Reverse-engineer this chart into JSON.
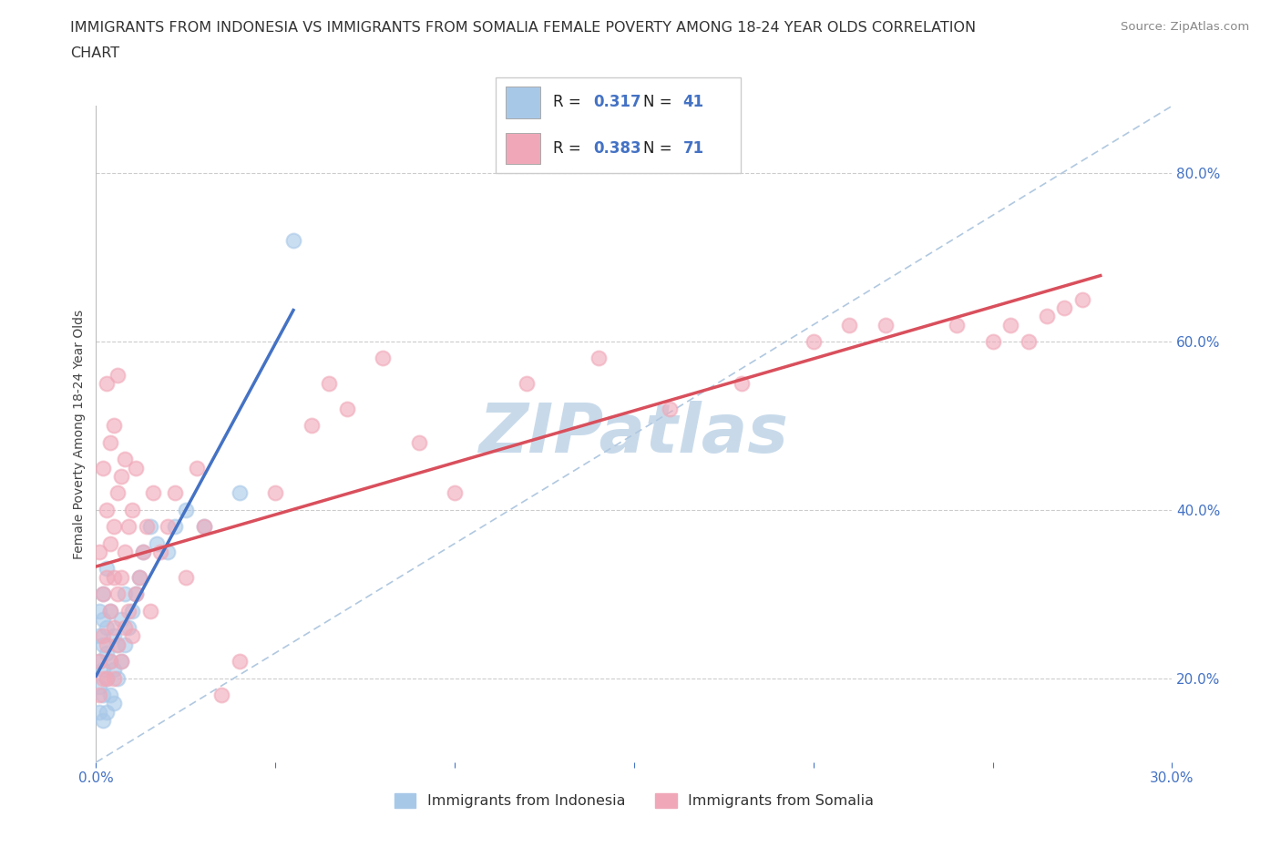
{
  "title_line1": "IMMIGRANTS FROM INDONESIA VS IMMIGRANTS FROM SOMALIA FEMALE POVERTY AMONG 18-24 YEAR OLDS CORRELATION",
  "title_line2": "CHART",
  "source_text": "Source: ZipAtlas.com",
  "ylabel": "Female Poverty Among 18-24 Year Olds",
  "xlim": [
    0.0,
    0.3
  ],
  "ylim": [
    0.1,
    0.88
  ],
  "xticks": [
    0.0,
    0.05,
    0.1,
    0.15,
    0.2,
    0.25,
    0.3
  ],
  "xticklabels": [
    "0.0%",
    "",
    "",
    "",
    "",
    "",
    "30.0%"
  ],
  "yticks": [
    0.2,
    0.4,
    0.6,
    0.8
  ],
  "yticklabels": [
    "20.0%",
    "40.0%",
    "60.0%",
    "80.0%"
  ],
  "grid_color": "#cccccc",
  "watermark": "ZIPatlas",
  "watermark_color": "#c8daea",
  "indonesia_color": "#a8c8e8",
  "somalia_color": "#f0a8b8",
  "indonesia_line_color": "#4472c4",
  "somalia_line_color": "#d94f5c",
  "ref_line_color": "#b0c8e0",
  "R_indonesia": 0.317,
  "N_indonesia": 41,
  "R_somalia": 0.383,
  "N_somalia": 71,
  "legend_R_color": "#4472c4",
  "indonesia_scatter_x": [
    0.001,
    0.001,
    0.001,
    0.001,
    0.001,
    0.002,
    0.002,
    0.002,
    0.002,
    0.002,
    0.002,
    0.003,
    0.003,
    0.003,
    0.003,
    0.003,
    0.004,
    0.004,
    0.004,
    0.005,
    0.005,
    0.005,
    0.006,
    0.006,
    0.007,
    0.007,
    0.008,
    0.008,
    0.009,
    0.01,
    0.011,
    0.012,
    0.013,
    0.015,
    0.017,
    0.02,
    0.022,
    0.025,
    0.03,
    0.04,
    0.055
  ],
  "indonesia_scatter_y": [
    0.16,
    0.19,
    0.22,
    0.25,
    0.28,
    0.15,
    0.18,
    0.21,
    0.24,
    0.27,
    0.3,
    0.16,
    0.2,
    0.23,
    0.26,
    0.33,
    0.18,
    0.22,
    0.28,
    0.17,
    0.21,
    0.25,
    0.2,
    0.24,
    0.22,
    0.27,
    0.24,
    0.3,
    0.26,
    0.28,
    0.3,
    0.32,
    0.35,
    0.38,
    0.36,
    0.35,
    0.38,
    0.4,
    0.38,
    0.42,
    0.72
  ],
  "somalia_scatter_x": [
    0.001,
    0.001,
    0.001,
    0.002,
    0.002,
    0.002,
    0.002,
    0.003,
    0.003,
    0.003,
    0.003,
    0.003,
    0.004,
    0.004,
    0.004,
    0.004,
    0.005,
    0.005,
    0.005,
    0.005,
    0.005,
    0.006,
    0.006,
    0.006,
    0.006,
    0.007,
    0.007,
    0.007,
    0.008,
    0.008,
    0.008,
    0.009,
    0.009,
    0.01,
    0.01,
    0.011,
    0.011,
    0.012,
    0.013,
    0.014,
    0.015,
    0.016,
    0.018,
    0.02,
    0.022,
    0.025,
    0.028,
    0.03,
    0.035,
    0.04,
    0.05,
    0.06,
    0.065,
    0.07,
    0.08,
    0.09,
    0.1,
    0.12,
    0.14,
    0.16,
    0.18,
    0.2,
    0.21,
    0.22,
    0.24,
    0.25,
    0.255,
    0.26,
    0.265,
    0.27,
    0.275
  ],
  "somalia_scatter_y": [
    0.18,
    0.22,
    0.35,
    0.2,
    0.25,
    0.3,
    0.45,
    0.2,
    0.24,
    0.32,
    0.4,
    0.55,
    0.22,
    0.28,
    0.36,
    0.48,
    0.2,
    0.26,
    0.32,
    0.38,
    0.5,
    0.24,
    0.3,
    0.42,
    0.56,
    0.22,
    0.32,
    0.44,
    0.26,
    0.35,
    0.46,
    0.28,
    0.38,
    0.25,
    0.4,
    0.3,
    0.45,
    0.32,
    0.35,
    0.38,
    0.28,
    0.42,
    0.35,
    0.38,
    0.42,
    0.32,
    0.45,
    0.38,
    0.18,
    0.22,
    0.42,
    0.5,
    0.55,
    0.52,
    0.58,
    0.48,
    0.42,
    0.55,
    0.58,
    0.52,
    0.55,
    0.6,
    0.62,
    0.62,
    0.62,
    0.6,
    0.62,
    0.6,
    0.63,
    0.64,
    0.65
  ],
  "title_fontsize": 11.5,
  "axis_label_fontsize": 10,
  "tick_fontsize": 11,
  "source_fontsize": 9.5
}
